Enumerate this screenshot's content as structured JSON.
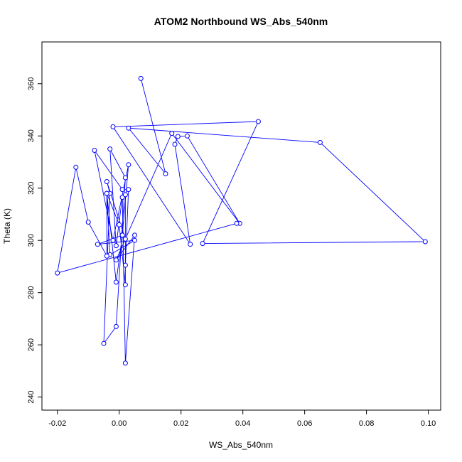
{
  "chart_data": {
    "type": "scatter",
    "title": "ATOM2 Northbound WS_Abs_540nm",
    "xlabel": "WS_Abs_540nm",
    "ylabel": "Theta (K)",
    "xlim": [
      -0.025,
      0.104
    ],
    "ylim": [
      235,
      376
    ],
    "xticks": [
      "-0.02",
      "0.00",
      "0.02",
      "0.04",
      "0.06",
      "0.08",
      "0.10"
    ],
    "yticks": [
      "240",
      "260",
      "280",
      "300",
      "320",
      "340",
      "360"
    ],
    "grid": false,
    "legend": "none",
    "series": [
      {
        "color": "#0000ff",
        "marker": "open-circle",
        "line": true,
        "points": [
          [
            0.007,
            362.0
          ],
          [
            0.015,
            325.5
          ],
          [
            0.003,
            343.0
          ],
          [
            0.065,
            337.5
          ],
          [
            0.099,
            299.5
          ],
          [
            0.027,
            298.8
          ],
          [
            0.045,
            345.5
          ],
          [
            -0.002,
            343.5
          ],
          [
            0.023,
            298.5
          ],
          [
            0.018,
            336.8
          ],
          [
            0.019,
            339.8
          ],
          [
            0.022,
            340.0
          ],
          [
            0.039,
            306.5
          ],
          [
            0.017,
            341.0
          ],
          [
            -0.001,
            292.5
          ],
          [
            0.005,
            302.0
          ],
          [
            0.002,
            253.0
          ],
          [
            0.001,
            316.5
          ],
          [
            -0.001,
            298.0
          ],
          [
            -0.003,
            335.0
          ],
          [
            0.002,
            324.0
          ],
          [
            -0.001,
            267.0
          ],
          [
            -0.005,
            260.5
          ],
          [
            -0.003,
            318.0
          ],
          [
            -0.004,
            322.5
          ],
          [
            0.002,
            300.5
          ],
          [
            0.001,
            302.0
          ],
          [
            0.003,
            329.0
          ],
          [
            -0.002,
            300.0
          ],
          [
            -0.008,
            334.5
          ],
          [
            0.001,
            319.5
          ],
          [
            0.003,
            319.5
          ],
          [
            0.002,
            290.5
          ],
          [
            0.002,
            317.5
          ],
          [
            0.002,
            283.0
          ],
          [
            0.0,
            306.0
          ],
          [
            -0.004,
            318.0
          ],
          [
            -0.003,
            294.5
          ],
          [
            0.005,
            300.0
          ],
          [
            -0.007,
            298.5
          ],
          [
            0.001,
            302.0
          ],
          [
            -0.001,
            284.0
          ],
          [
            -0.004,
            318.0
          ],
          [
            -0.004,
            294.0
          ],
          [
            -0.01,
            307.0
          ],
          [
            -0.014,
            328.0
          ],
          [
            -0.02,
            287.5
          ],
          [
            0.038,
            306.5
          ]
        ]
      }
    ]
  }
}
